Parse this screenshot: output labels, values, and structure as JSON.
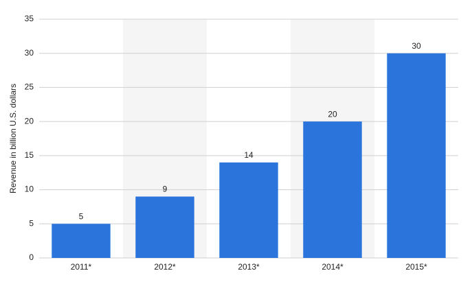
{
  "chart_data": {
    "type": "bar",
    "y_label": "Revenue in billion U.S. dollars",
    "categories": [
      "2011*",
      "2012*",
      "2013*",
      "2014*",
      "2015*"
    ],
    "values": [
      5,
      9,
      14,
      20,
      30
    ],
    "color": "#2a74db",
    "ylim": [
      0,
      35
    ],
    "yticks": [
      0,
      5,
      10,
      15,
      20,
      25,
      30,
      35
    ],
    "grid": true
  }
}
